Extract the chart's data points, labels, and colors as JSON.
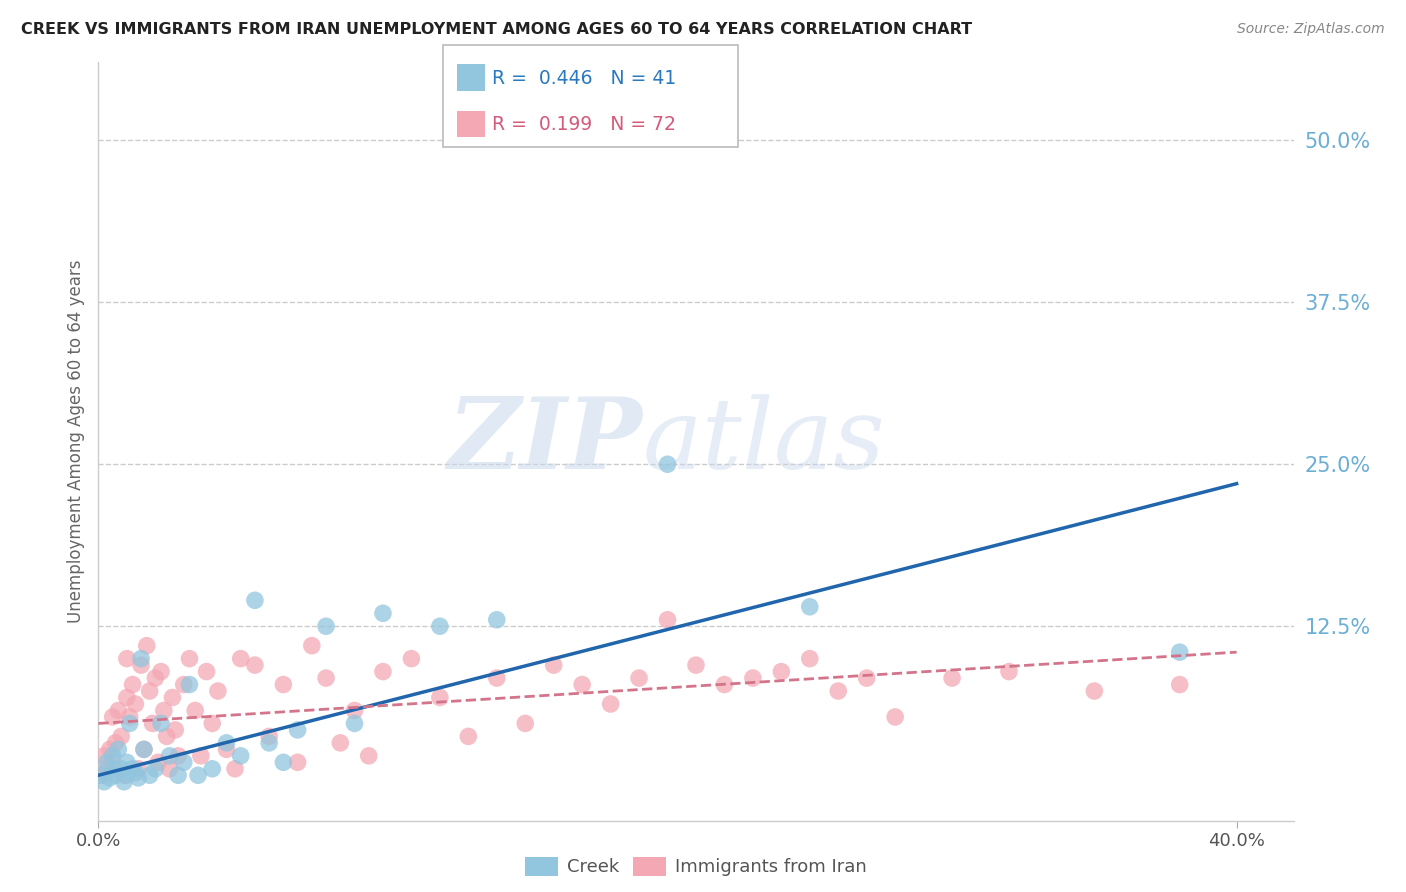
{
  "title": "CREEK VS IMMIGRANTS FROM IRAN UNEMPLOYMENT AMONG AGES 60 TO 64 YEARS CORRELATION CHART",
  "source": "Source: ZipAtlas.com",
  "ylabel": "Unemployment Among Ages 60 to 64 years",
  "ytick_labels": [
    "50.0%",
    "37.5%",
    "25.0%",
    "12.5%"
  ],
  "ytick_values": [
    0.5,
    0.375,
    0.25,
    0.125
  ],
  "xlim": [
    0.0,
    0.42
  ],
  "ylim": [
    -0.025,
    0.56
  ],
  "creek_color": "#92c5de",
  "iran_color": "#f4a8b4",
  "creek_line_color": "#2166ac",
  "iran_line_color": "#d4748a",
  "creek_R": 0.446,
  "creek_N": 41,
  "iran_R": 0.199,
  "iran_N": 72,
  "creek_scatter_x": [
    0.001,
    0.002,
    0.003,
    0.004,
    0.005,
    0.005,
    0.006,
    0.007,
    0.008,
    0.009,
    0.01,
    0.01,
    0.011,
    0.012,
    0.013,
    0.014,
    0.015,
    0.016,
    0.018,
    0.02,
    0.022,
    0.025,
    0.028,
    0.03,
    0.032,
    0.035,
    0.04,
    0.045,
    0.05,
    0.055,
    0.06,
    0.065,
    0.07,
    0.08,
    0.09,
    0.1,
    0.12,
    0.14,
    0.2,
    0.25,
    0.38
  ],
  "creek_scatter_y": [
    0.01,
    0.005,
    0.02,
    0.008,
    0.015,
    0.025,
    0.01,
    0.03,
    0.015,
    0.005,
    0.02,
    0.01,
    0.05,
    0.015,
    0.012,
    0.008,
    0.1,
    0.03,
    0.01,
    0.015,
    0.05,
    0.025,
    0.01,
    0.02,
    0.08,
    0.01,
    0.015,
    0.035,
    0.025,
    0.145,
    0.035,
    0.02,
    0.045,
    0.125,
    0.05,
    0.135,
    0.125,
    0.13,
    0.25,
    0.14,
    0.105
  ],
  "iran_scatter_x": [
    0.001,
    0.002,
    0.003,
    0.004,
    0.005,
    0.005,
    0.006,
    0.007,
    0.008,
    0.009,
    0.01,
    0.01,
    0.011,
    0.012,
    0.013,
    0.014,
    0.015,
    0.016,
    0.017,
    0.018,
    0.019,
    0.02,
    0.021,
    0.022,
    0.023,
    0.024,
    0.025,
    0.026,
    0.027,
    0.028,
    0.03,
    0.032,
    0.034,
    0.036,
    0.038,
    0.04,
    0.042,
    0.045,
    0.048,
    0.05,
    0.055,
    0.06,
    0.065,
    0.07,
    0.075,
    0.08,
    0.085,
    0.09,
    0.095,
    0.1,
    0.11,
    0.12,
    0.13,
    0.14,
    0.15,
    0.16,
    0.17,
    0.18,
    0.19,
    0.2,
    0.21,
    0.22,
    0.23,
    0.24,
    0.25,
    0.26,
    0.27,
    0.28,
    0.3,
    0.32,
    0.35,
    0.38
  ],
  "iran_scatter_y": [
    0.01,
    0.025,
    0.015,
    0.03,
    0.02,
    0.055,
    0.035,
    0.06,
    0.04,
    0.01,
    0.07,
    0.1,
    0.055,
    0.08,
    0.065,
    0.015,
    0.095,
    0.03,
    0.11,
    0.075,
    0.05,
    0.085,
    0.02,
    0.09,
    0.06,
    0.04,
    0.015,
    0.07,
    0.045,
    0.025,
    0.08,
    0.1,
    0.06,
    0.025,
    0.09,
    0.05,
    0.075,
    0.03,
    0.015,
    0.1,
    0.095,
    0.04,
    0.08,
    0.02,
    0.11,
    0.085,
    0.035,
    0.06,
    0.025,
    0.09,
    0.1,
    0.07,
    0.04,
    0.085,
    0.05,
    0.095,
    0.08,
    0.065,
    0.085,
    0.13,
    0.095,
    0.08,
    0.085,
    0.09,
    0.1,
    0.075,
    0.085,
    0.055,
    0.085,
    0.09,
    0.075,
    0.08
  ],
  "creek_line_x": [
    0.0,
    0.4
  ],
  "creek_line_y": [
    0.01,
    0.235
  ],
  "iran_line_x": [
    0.0,
    0.4
  ],
  "iran_line_y": [
    0.05,
    0.105
  ],
  "watermark_zip": "ZIP",
  "watermark_atlas": "atlas",
  "background_color": "#ffffff",
  "grid_color": "#cccccc",
  "xtick_positions": [
    0.0,
    0.4
  ],
  "xtick_labels": [
    "0.0%",
    "40.0%"
  ]
}
